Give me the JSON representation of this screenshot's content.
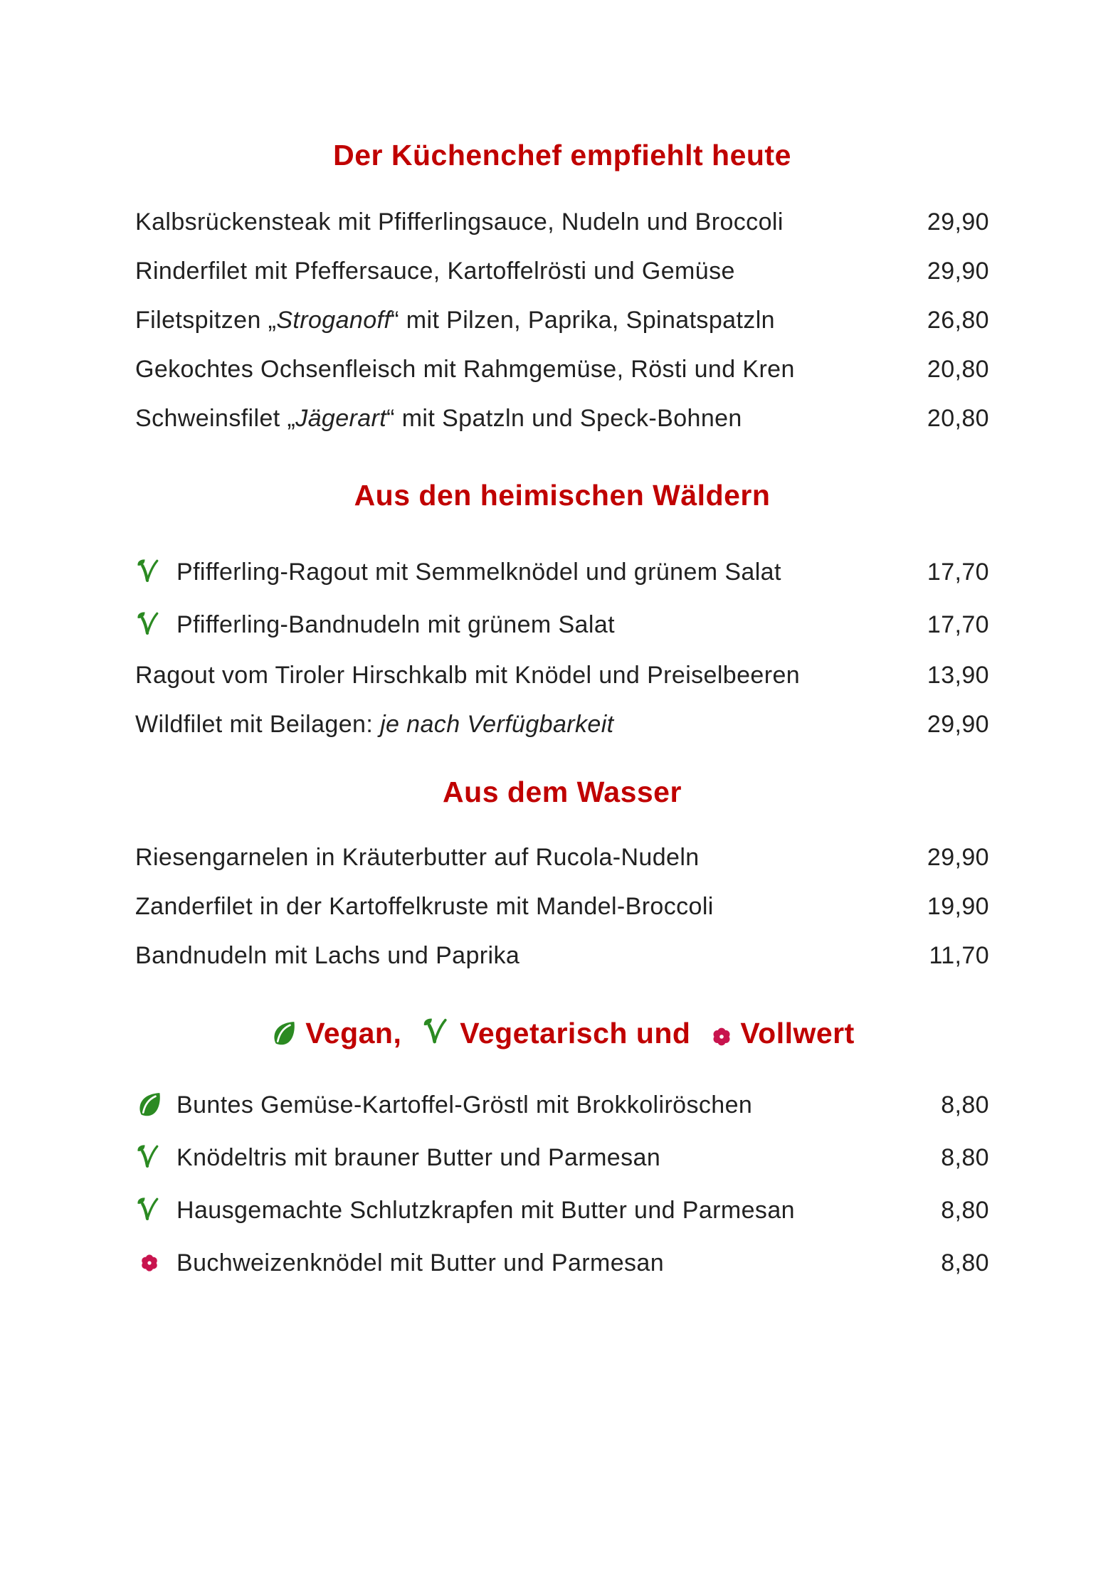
{
  "page": {
    "background": "#ffffff"
  },
  "colors": {
    "heading_red": "#c00000",
    "body_text": "#212121",
    "icon_green": "#2b8a22",
    "flower_red": "#c8144e"
  },
  "icons": {
    "vegan": "vegan-leaf-icon",
    "vegetarian": "vegetarian-v-icon",
    "vollwert": "vollwert-flower-icon"
  },
  "sections": [
    {
      "title": "Der Küchenchef empfiehlt heute",
      "items": [
        {
          "segments": [
            {
              "text": "Kalbsrückensteak mit Pfifferlingsauce, Nudeln und Broccoli"
            }
          ],
          "price": "29,90"
        },
        {
          "segments": [
            {
              "text": "Rinderfilet mit Pfeffersauce, Kartoffelrösti und Gemüse"
            }
          ],
          "price": "29,90"
        },
        {
          "segments": [
            {
              "text": "Filetspitzen „"
            },
            {
              "text": "Stroganoff",
              "italic": true
            },
            {
              "text": "“ mit Pilzen, Paprika, Spinatspatzln"
            }
          ],
          "price": "26,80"
        },
        {
          "segments": [
            {
              "text": "Gekochtes Ochsenfleisch mit Rahmgemüse, Rösti und Kren"
            }
          ],
          "price": "20,80"
        },
        {
          "segments": [
            {
              "text": "Schweinsfilet „"
            },
            {
              "text": "Jägerart",
              "italic": true
            },
            {
              "text": "“ mit Spatzln und Speck-Bohnen"
            }
          ],
          "price": "20,80"
        }
      ]
    },
    {
      "title": "Aus den heimischen Wäldern",
      "items": [
        {
          "icon": "vegetarian",
          "segments": [
            {
              "text": "Pfifferling-Ragout mit Semmelknödel und grünem Salat"
            }
          ],
          "price": "17,70"
        },
        {
          "icon": "vegetarian",
          "segments": [
            {
              "text": "Pfifferling-Bandnudeln mit grünem Salat"
            }
          ],
          "price": "17,70"
        },
        {
          "segments": [
            {
              "text": "Ragout vom Tiroler Hirschkalb mit Knödel und Preiselbeeren"
            }
          ],
          "price": "13,90"
        },
        {
          "segments": [
            {
              "text": "Wildfilet mit Beilagen: "
            },
            {
              "text": "je nach Verfügbarkeit",
              "italic": true
            }
          ],
          "price": "29,90"
        }
      ]
    },
    {
      "title": "Aus dem Wasser",
      "items": [
        {
          "segments": [
            {
              "text": "Riesengarnelen in Kräuterbutter auf Rucola-Nudeln"
            }
          ],
          "price": "29,90"
        },
        {
          "segments": [
            {
              "text": "Zanderfilet in der Kartoffelkruste mit Mandel-Broccoli"
            }
          ],
          "price": "19,90"
        },
        {
          "segments": [
            {
              "text": "Bandnudeln mit Lachs und Paprika"
            }
          ],
          "price": "11,70"
        }
      ]
    },
    {
      "title_parts": [
        {
          "icon": "vegan",
          "text": "Vegan, "
        },
        {
          "icon": "vegetarian",
          "text": "Vegetarisch und "
        },
        {
          "icon": "vollwert",
          "text": "Vollwert"
        }
      ],
      "items": [
        {
          "icon": "vegan",
          "segments": [
            {
              "text": "Buntes Gemüse-Kartoffel-Gröstl mit Brokkoliröschen"
            }
          ],
          "price": "8,80"
        },
        {
          "icon": "vegetarian",
          "segments": [
            {
              "text": "Knödeltris mit brauner Butter und Parmesan"
            }
          ],
          "price": "8,80"
        },
        {
          "icon": "vegetarian",
          "segments": [
            {
              "text": "Hausgemachte Schlutzkrapfen mit Butter und Parmesan"
            }
          ],
          "price": "8,80"
        },
        {
          "icon": "vollwert",
          "segments": [
            {
              "text": "Buchweizenknödel mit Butter und Parmesan"
            }
          ],
          "price": "8,80"
        }
      ]
    }
  ]
}
